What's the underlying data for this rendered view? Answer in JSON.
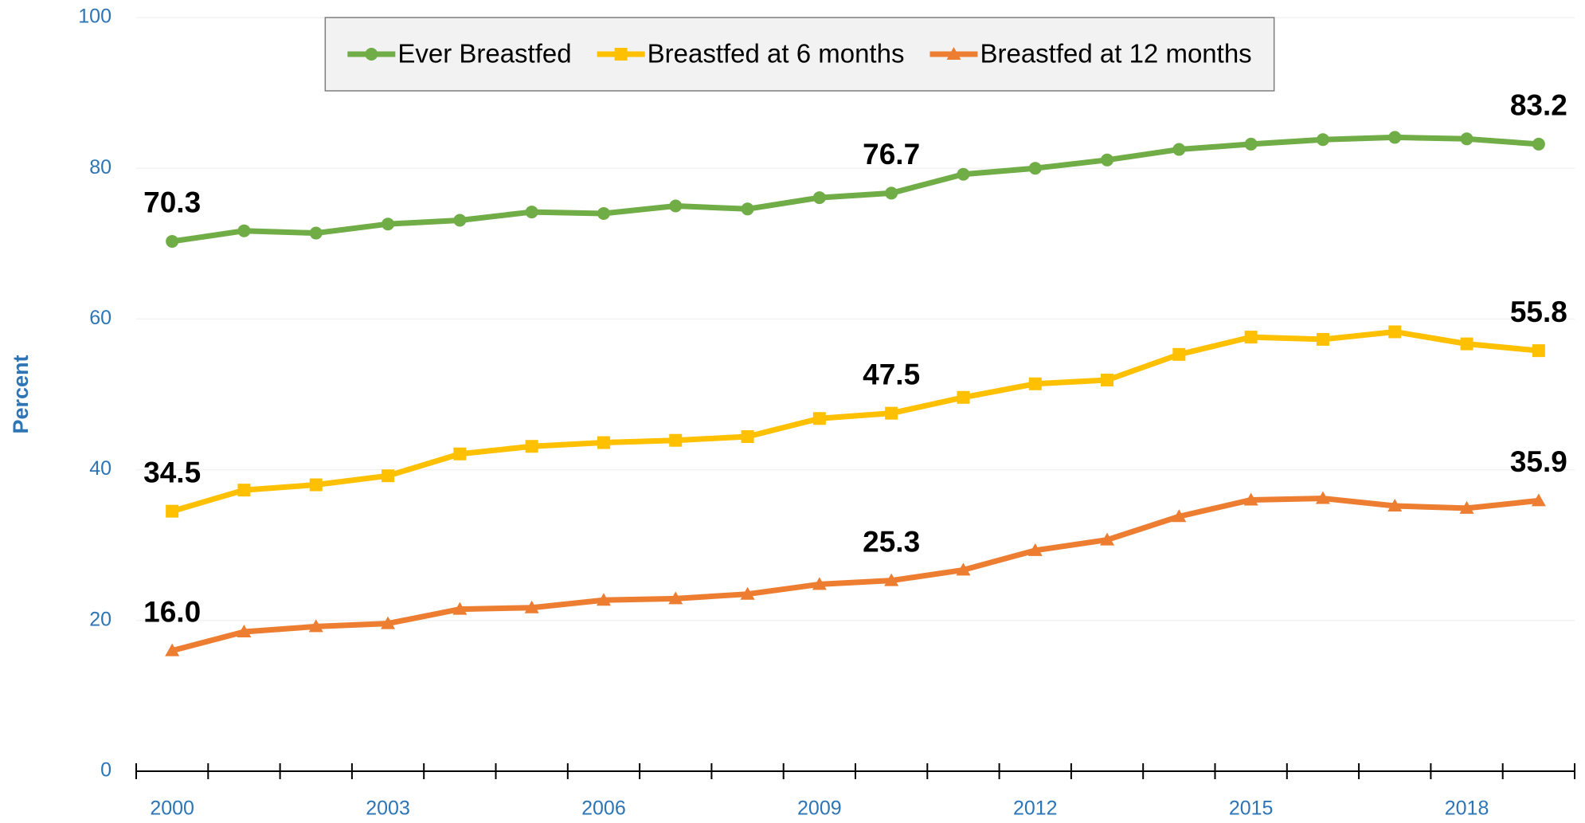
{
  "chart_data": {
    "type": "line",
    "y_label": "Percent",
    "x": [
      2000,
      2001,
      2002,
      2003,
      2004,
      2005,
      2006,
      2007,
      2008,
      2009,
      2010,
      2011,
      2012,
      2013,
      2014,
      2015,
      2016,
      2017,
      2018,
      2019
    ],
    "xlim": [
      1999.5,
      2019.5
    ],
    "xticks": [
      2000,
      2003,
      2006,
      2009,
      2012,
      2015,
      2018
    ],
    "ylim": [
      0,
      100
    ],
    "yticks": [
      0,
      20,
      40,
      60,
      80,
      100
    ],
    "grid": true,
    "legend": "top",
    "series": [
      {
        "name": "Ever Breastfed",
        "color": "#70ad47",
        "marker": "circle",
        "values": [
          70.3,
          71.7,
          71.4,
          72.6,
          73.1,
          74.2,
          74.0,
          75.0,
          74.6,
          76.1,
          76.7,
          79.2,
          80.0,
          81.1,
          82.5,
          83.2,
          83.8,
          84.1,
          83.9,
          83.2
        ],
        "value_labels": [
          "70.3",
          null,
          null,
          null,
          null,
          null,
          null,
          null,
          null,
          null,
          "76.7",
          null,
          null,
          null,
          null,
          null,
          null,
          null,
          null,
          "83.2"
        ]
      },
      {
        "name": "Breastfed at 6 months",
        "color": "#ffc000",
        "marker": "square",
        "values": [
          34.5,
          37.3,
          38.0,
          39.2,
          42.1,
          43.1,
          43.6,
          43.9,
          44.4,
          46.8,
          47.5,
          49.6,
          51.4,
          51.9,
          55.3,
          57.6,
          57.3,
          58.3,
          56.7,
          55.8
        ],
        "value_labels": [
          "34.5",
          null,
          null,
          null,
          null,
          null,
          null,
          null,
          null,
          null,
          "47.5",
          null,
          null,
          null,
          null,
          null,
          null,
          null,
          null,
          "55.8"
        ]
      },
      {
        "name": "Breastfed at 12 months",
        "color": "#ed7d31",
        "marker": "triangle",
        "values": [
          16.0,
          18.5,
          19.2,
          19.6,
          21.5,
          21.7,
          22.7,
          22.9,
          23.5,
          24.8,
          25.3,
          26.7,
          29.3,
          30.7,
          33.8,
          36.0,
          36.2,
          35.2,
          34.9,
          35.9
        ],
        "value_labels": [
          "16.0",
          null,
          null,
          null,
          null,
          null,
          null,
          null,
          null,
          null,
          "25.3",
          null,
          null,
          null,
          null,
          null,
          null,
          null,
          null,
          "35.9"
        ]
      }
    ]
  }
}
